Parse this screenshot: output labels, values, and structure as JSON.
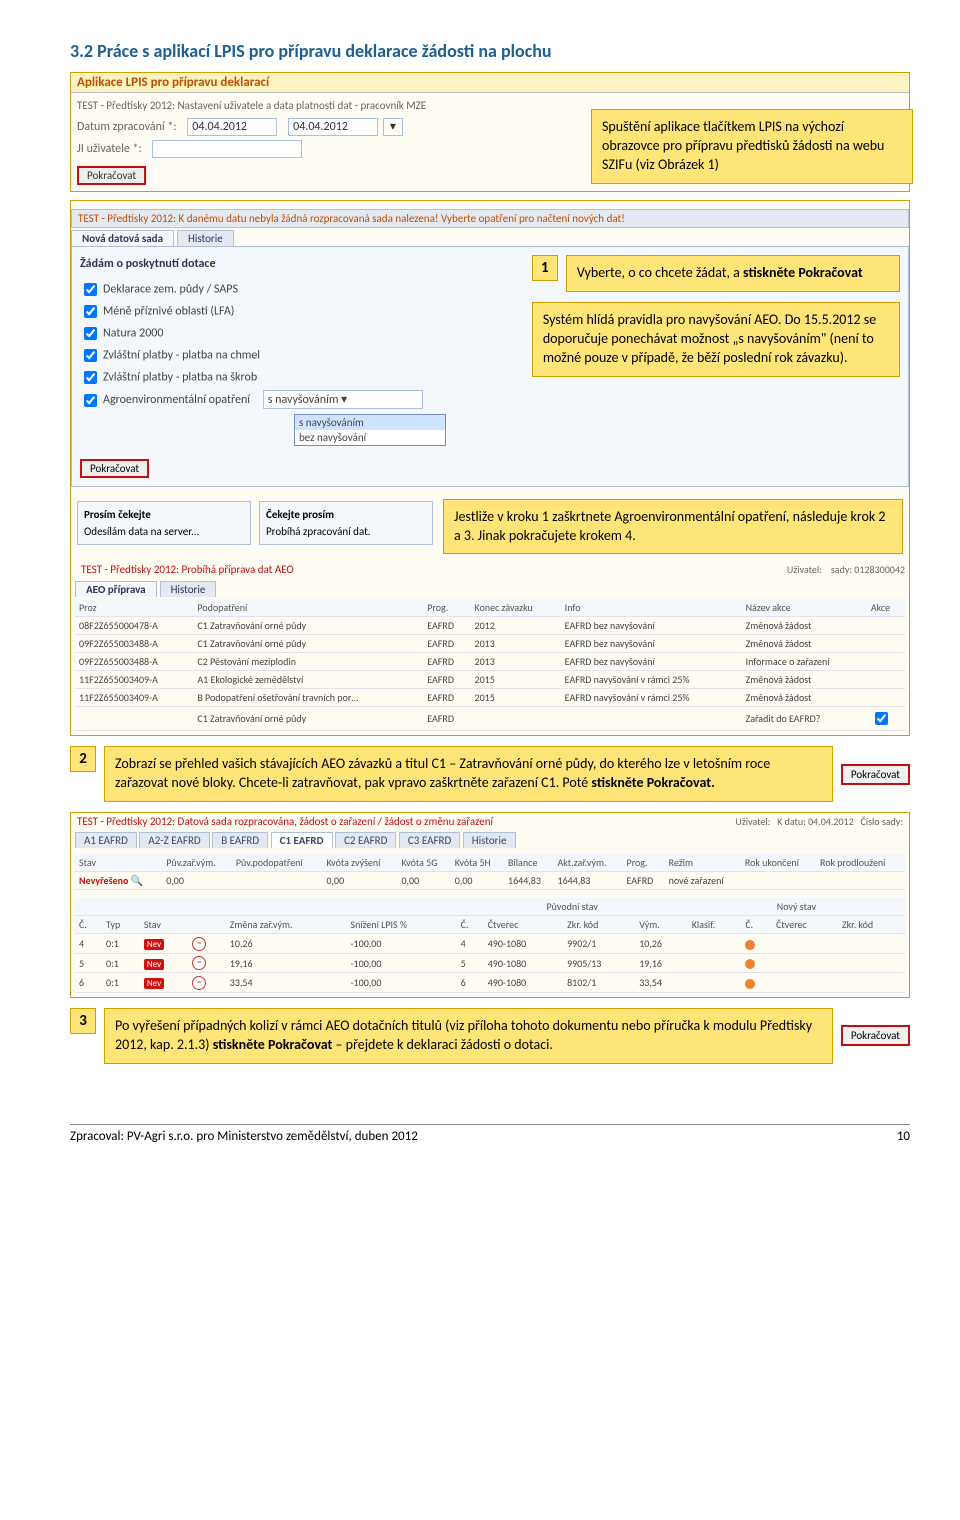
{
  "heading": "3.2 Práce s aplikací LPIS pro přípravu deklarace žádosti na plochu",
  "app_header": "Aplikace LPIS pro přípravu deklarací",
  "test_title": "TEST - Předtisky 2012: Nastavení uživatele a data platnosti dat - pracovník MZE",
  "date_label": "Datum zpracování *:",
  "ji_label": "JI uživatele *:",
  "date1": "04.04.2012",
  "date2": "04.04.2012",
  "btn_pokracovat": "Pokračovat",
  "callout_intro": "Spuštění aplikace tlačítkem LPIS na výchozí obrazovce pro přípravu předtisků žádosti na webu SZIFu (viz Obrázek 1)",
  "mid_header": "TEST - Předtisky 2012: K danému datu nebyla žádná rozpracovaná sada nalezena! Vyberte opatření pro načtení nových dat!",
  "tab_new": "Nová datová sada",
  "tab_hist": "Historie",
  "panel_title": "Žádám o poskytnutí dotace",
  "cb1": "Deklarace zem. půdy / SAPS",
  "cb2": "Méně příznivé oblasti (LFA)",
  "cb3": "Natura 2000",
  "cb4": "Zvláštní platby - platba na chmel",
  "cb5": "Zvláštní platby - platba na škrob",
  "cb6": "Agroenvironmentální opatření",
  "dd_sel": "s navyšováním",
  "dd_opt1": "s navyšováním",
  "dd_opt2": "bez navyšování",
  "callout_step1": "Vyberte, o co chcete žádat, a stiskněte Pokračovat",
  "callout_rules": "Systém hlídá pravidla pro navyšování AEO. Do 15.5.2012 se doporučuje ponechávat možnost „s navyšováním\" (není to možné pouze v případě, že běží poslední rok závazku).",
  "wait1_t": "Prosím čekejte",
  "wait1_b": "Odesílám data na server...",
  "wait2_t": "Čekejte prosím",
  "wait2_b": "Probíhá zpracování dat.",
  "callout_step_aeo": "Jestliže v kroku 1 zaškrtnete Agroenvironmentální opatření, následuje krok 2 a 3. Jinak pokračujete krokem 4.",
  "red2": "TEST - Předtisky 2012: Probíhá příprava dat AEO",
  "tab_aeo": "AEO příprava",
  "uzivatel_lbl": "Uživatel:",
  "sady_lbl": "sady: 0128300042",
  "tbl_h": {
    "proz": "Proz",
    "pod": "Podopatření",
    "prog": "Prog.",
    "konec": "Konec závazku",
    "info": "Info",
    "nazev": "Název akce",
    "akce": "Akce"
  },
  "rows": [
    {
      "proz": "08F2Z655000478-A",
      "pod": "C1 Zatravňování orné půdy",
      "prog": "EAFRD",
      "konec": "2012",
      "info": "EAFRD bez navyšování",
      "nazev": "Změnová žádost"
    },
    {
      "proz": "09F2Z655003488-A",
      "pod": "C1 Zatravňování orné půdy",
      "prog": "EAFRD",
      "konec": "2013",
      "info": "EAFRD bez navyšování",
      "nazev": "Změnová žádost"
    },
    {
      "proz": "09F2Z655003488-A",
      "pod": "C2 Pěstování meziplodin",
      "prog": "EAFRD",
      "konec": "2013",
      "info": "EAFRD bez navyšování",
      "nazev": "Informace o zařazení"
    },
    {
      "proz": "11F2Z655003409-A",
      "pod": "A1 Ekologické zemědělství",
      "prog": "EAFRD",
      "konec": "2015",
      "info": "EAFRD navyšování v rámci 25%",
      "nazev": "Změnová žádost"
    },
    {
      "proz": "11F2Z655003409-A",
      "pod": "B Podopatření ošetřování travních por…",
      "prog": "EAFRD",
      "konec": "2015",
      "info": "EAFRD navyšování v rámci 25%",
      "nazev": "Změnová žádost"
    },
    {
      "proz": "",
      "pod": "C1 Zatravňování orné půdy",
      "prog": "EAFRD",
      "konec": "",
      "info": "",
      "nazev": "Zařadit do EAFRD?"
    }
  ],
  "callout_step2": "Zobrazí se přehled vašich stávajících AEO závazků a titul C1 – Zatravňování orné půdy, do kterého lze v letošním roce zařazovat nové bloky. Chcete-li zatravňovat, pak vpravo zaškrtněte zařazení C1. Poté stiskněte Pokračovat.",
  "red3": "TEST - Předtisky 2012: Datová sada rozpracována, žádost o zařazení / žádost o změnu zařazení",
  "kdata": "K datu: 04.04.2012",
  "cislo": "Číslo sady:",
  "subtabs": {
    "a1": "A1 EAFRD",
    "a2": "A2-Z EAFRD",
    "b": "B EAFRD",
    "c1": "C1 EAFRD",
    "c2": "C2 EAFRD",
    "c3": "C3 EAFRD",
    "h": "Historie"
  },
  "sumh": {
    "stav": "Stav",
    "puv": "Pův.zař.vým.",
    "pod": "Pův.podopatření",
    "kv": "Kvóta zvýšení",
    "k5g": "Kvóta 5G",
    "k5h": "Kvóta 5H",
    "bil": "Bilance",
    "akt": "Akt.zař.vým.",
    "prog": "Prog.",
    "rez": "Režim",
    "ruk": "Rok ukončení",
    "rpr": "Rok prodloužení"
  },
  "sumr": {
    "stav": "Nevyřešeno",
    "puv": "0,00",
    "kv": "0,00",
    "k5g": "0,00",
    "k5h": "0,00",
    "bil": "1644,83",
    "akt": "1644,83",
    "prog": "EAFRD",
    "rez": "nové zařazení"
  },
  "subh": {
    "puv": "Původní stav",
    "novy": "Nový stav",
    "c": "Č.",
    "typ": "Typ",
    "stav": "Stav",
    "zmena": "Změna zař.vým.",
    "sniz": "Snížení LPIS %",
    "ctv": "Čtverec",
    "zkr": "Zkr. kód",
    "vym": "Vým.",
    "klas": "Klasif."
  },
  "detrows": [
    {
      "c": "4",
      "typ": "0:1",
      "z": "10,26",
      "s": "-100,00",
      "nc": "4",
      "ctv": "490-1080",
      "kod": "9902/1",
      "vym": "10,26"
    },
    {
      "c": "5",
      "typ": "0:1",
      "z": "19,16",
      "s": "-100,00",
      "nc": "5",
      "ctv": "490-1080",
      "kod": "9905/13",
      "vym": "19,16"
    },
    {
      "c": "6",
      "typ": "0:1",
      "z": "33,54",
      "s": "-100,00",
      "nc": "6",
      "ctv": "490-1080",
      "kod": "8102/1",
      "vym": "33,54"
    }
  ],
  "callout_step3": "Po vyřešení případných kolizí v rámci AEO dotačních titulů (viz příloha tohoto dokumentu nebo příručka k modulu Předtisky 2012, kap. 2.1.3) stiskněte Pokračovat – přejdete k deklaraci žádosti o dotaci.",
  "step1": "1",
  "step2": "2",
  "step3": "3",
  "footer_l": "Zpracoval: PV-Agri s.r.o. pro Ministerstvo zemědělství, duben 2012",
  "footer_r": "10",
  "nev": "Nev",
  "mag": "🔍"
}
